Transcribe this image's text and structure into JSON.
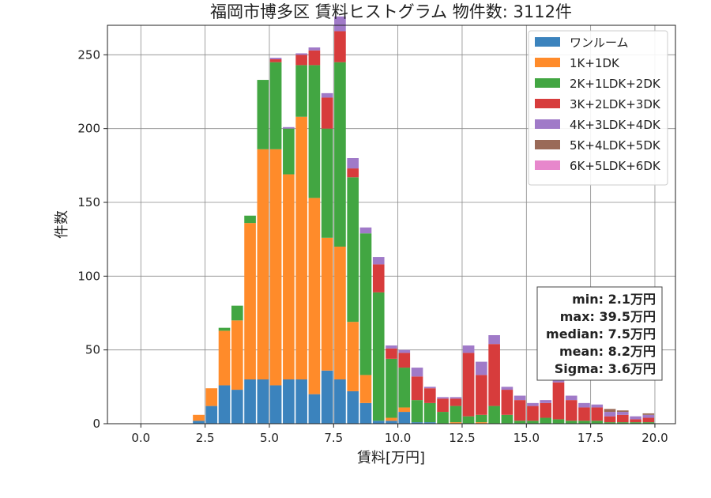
{
  "chart_data": {
    "type": "bar",
    "stacked": true,
    "title": "福岡市博多区 賃料ヒストグラム 物件数: 3112件",
    "xlabel": "賃料[万円]",
    "ylabel": "件数",
    "xlim": [
      -1.3,
      20.8
    ],
    "ylim": [
      0,
      270
    ],
    "x_ticks": [
      0.0,
      2.5,
      5.0,
      7.5,
      10.0,
      12.5,
      15.0,
      17.5,
      20.0
    ],
    "x_tick_labels": [
      "0.0",
      "2.5",
      "5.0",
      "7.5",
      "10.0",
      "12.5",
      "15.0",
      "17.5",
      "20.0"
    ],
    "y_ticks": [
      0,
      50,
      100,
      150,
      200,
      250
    ],
    "y_tick_labels": [
      "0",
      "50",
      "100",
      "150",
      "200",
      "250"
    ],
    "grid": true,
    "legend_position": "top-right",
    "bin_width": 0.5,
    "bin_centers": [
      2.25,
      2.75,
      3.25,
      3.75,
      4.25,
      4.75,
      5.25,
      5.75,
      6.25,
      6.75,
      7.25,
      7.75,
      8.25,
      8.75,
      9.25,
      9.75,
      10.25,
      10.75,
      11.25,
      11.75,
      12.25,
      12.75,
      13.25,
      13.75,
      14.25,
      14.75,
      15.25,
      15.75,
      16.25,
      16.75,
      17.25,
      17.75,
      18.25,
      18.75,
      19.25,
      19.75
    ],
    "series": [
      {
        "name": "ワンルーム",
        "color": "#3b83bd",
        "values": [
          2,
          12,
          26,
          23,
          30,
          30,
          26,
          30,
          30,
          20,
          36,
          30,
          22,
          14,
          2,
          2,
          8,
          1,
          1,
          0,
          0,
          0,
          0,
          0,
          0,
          0,
          0,
          0,
          0,
          0,
          0,
          0,
          0,
          0,
          0,
          0
        ]
      },
      {
        "name": "1K+1DK",
        "color": "#ff8b2a",
        "values": [
          4,
          12,
          37,
          47,
          106,
          156,
          160,
          139,
          178,
          133,
          90,
          90,
          47,
          19,
          0,
          2,
          3,
          0,
          0,
          0,
          1,
          0,
          1,
          0,
          0,
          0,
          0,
          0,
          0,
          0,
          0,
          0,
          0,
          0,
          0,
          0
        ]
      },
      {
        "name": "2K+1LDK+2DK",
        "color": "#42a642",
        "values": [
          0,
          0,
          2,
          10,
          5,
          47,
          59,
          31,
          35,
          90,
          74,
          125,
          98,
          96,
          87,
          40,
          27,
          15,
          13,
          8,
          11,
          5,
          5,
          12,
          6,
          2,
          2,
          4,
          3,
          2,
          2,
          2,
          1,
          1,
          1,
          1
        ]
      },
      {
        "name": "3K+2LDK+3DK",
        "color": "#d73c3c",
        "values": [
          0,
          0,
          0,
          0,
          0,
          0,
          2,
          0,
          7,
          10,
          21,
          21,
          6,
          0,
          19,
          7,
          10,
          16,
          10,
          9,
          5,
          43,
          27,
          42,
          17,
          14,
          10,
          10,
          25,
          14,
          9,
          9,
          4,
          5,
          2,
          3
        ]
      },
      {
        "name": "4K+3LDK+4DK",
        "color": "#a07ac8",
        "values": [
          0,
          0,
          0,
          0,
          0,
          0,
          1,
          1,
          1,
          2,
          3,
          10,
          7,
          4,
          5,
          2,
          2,
          6,
          1,
          1,
          1,
          5,
          9,
          6,
          2,
          3,
          2,
          2,
          2,
          3,
          3,
          2,
          3,
          2,
          2,
          2
        ]
      },
      {
        "name": "5K+4LDK+5DK",
        "color": "#9a6a58",
        "values": [
          0,
          0,
          0,
          0,
          0,
          0,
          0,
          0,
          0,
          0,
          0,
          0,
          0,
          0,
          0,
          0,
          0,
          0,
          0,
          0,
          0,
          0,
          0,
          0,
          0,
          0,
          0,
          0,
          0,
          0,
          0,
          0,
          2,
          1,
          0,
          1
        ]
      },
      {
        "name": "6K+5LDK+6DK",
        "color": "#e787cc",
        "values": [
          0,
          0,
          0,
          0,
          0,
          0,
          0,
          0,
          0,
          0,
          0,
          0,
          0,
          0,
          0,
          0,
          0,
          0,
          0,
          0,
          0,
          0,
          0,
          0,
          0,
          0,
          0,
          0,
          0,
          0,
          0,
          0,
          0,
          0,
          0,
          0
        ]
      }
    ],
    "annotation": {
      "lines": [
        "min: 2.1万円",
        "max: 39.5万円",
        "median: 7.5万円",
        "mean: 8.2万円",
        "Sigma: 3.6万円"
      ]
    }
  }
}
